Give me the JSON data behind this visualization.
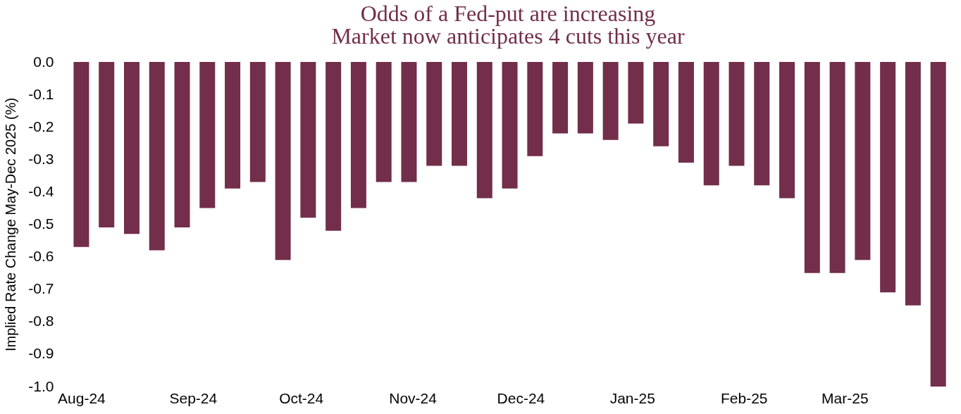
{
  "chart_data": {
    "type": "bar",
    "title": "Odds of a Fed-put are increasing",
    "subtitle": "Market now anticipates 4 cuts this year",
    "ylabel": "Implied Rate Change May-Dec 2025 (%)",
    "x": [
      "2024-08-01",
      "2024-08-08",
      "2024-08-15",
      "2024-08-22",
      "2024-08-29",
      "2024-09-05",
      "2024-09-12",
      "2024-09-19",
      "2024-09-26",
      "2024-10-03",
      "2024-10-10",
      "2024-10-17",
      "2024-10-24",
      "2024-10-31",
      "2024-11-07",
      "2024-11-14",
      "2024-11-21",
      "2024-11-28",
      "2024-12-05",
      "2024-12-12",
      "2024-12-19",
      "2024-12-26",
      "2025-01-02",
      "2025-01-09",
      "2025-01-16",
      "2025-01-23",
      "2025-01-30",
      "2025-02-06",
      "2025-02-13",
      "2025-02-20",
      "2025-02-27",
      "2025-03-06",
      "2025-03-13",
      "2025-03-20",
      "2025-03-27"
    ],
    "values": [
      -0.57,
      -0.51,
      -0.53,
      -0.58,
      -0.51,
      -0.45,
      -0.39,
      -0.37,
      -0.61,
      -0.48,
      -0.52,
      -0.45,
      -0.37,
      -0.37,
      -0.32,
      -0.32,
      -0.42,
      -0.39,
      -0.29,
      -0.22,
      -0.22,
      -0.24,
      -0.19,
      -0.26,
      -0.31,
      -0.38,
      -0.32,
      -0.38,
      -0.42,
      -0.65,
      -0.65,
      -0.61,
      -0.71,
      -0.75,
      -1.0
    ],
    "color": "#722e4a",
    "xlim": [
      "2024-07-28",
      "2025-03-30"
    ],
    "xticks": [
      {
        "value": "2024-08-01",
        "label": "Aug-24"
      },
      {
        "value": "2024-09-01",
        "label": "Sep-24"
      },
      {
        "value": "2024-10-01",
        "label": "Oct-24"
      },
      {
        "value": "2024-11-01",
        "label": "Nov-24"
      },
      {
        "value": "2024-12-01",
        "label": "Dec-24"
      },
      {
        "value": "2025-01-01",
        "label": "Jan-25"
      },
      {
        "value": "2025-02-01",
        "label": "Feb-25"
      },
      {
        "value": "2025-03-01",
        "label": "Mar-25"
      }
    ],
    "ylim": [
      -1.0,
      0.0
    ],
    "yticks": [
      {
        "value": 0,
        "label": "0.0"
      },
      {
        "value": -0.1,
        "label": "-0.1"
      },
      {
        "value": -0.2,
        "label": "-0.2"
      },
      {
        "value": -0.3,
        "label": "-0.3"
      },
      {
        "value": -0.4,
        "label": "-0.4"
      },
      {
        "value": -0.5,
        "label": "-0.5"
      },
      {
        "value": -0.6,
        "label": "-0.6"
      },
      {
        "value": -0.7,
        "label": "-0.7"
      },
      {
        "value": -0.8,
        "label": "-0.8"
      },
      {
        "value": -0.9,
        "label": "-0.9"
      },
      {
        "value": -1,
        "label": "-1.0"
      }
    ],
    "grid": false
  }
}
